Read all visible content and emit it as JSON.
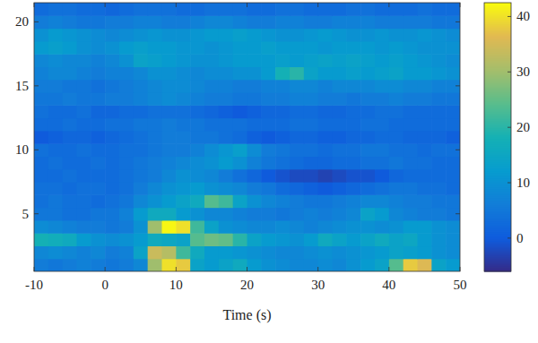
{
  "chart_data": {
    "type": "heatmap",
    "xlabel": "Time (s)",
    "x": [
      -9,
      -7,
      -5,
      -3,
      -1,
      1,
      3,
      5,
      7,
      9,
      11,
      13,
      15,
      17,
      19,
      21,
      23,
      25,
      27,
      29,
      31,
      33,
      35,
      37,
      39,
      41,
      43,
      45,
      47,
      49
    ],
    "y": [
      1,
      2,
      3,
      4,
      5,
      6,
      7,
      8,
      9,
      10,
      11,
      12,
      13,
      14,
      15,
      16,
      17,
      18,
      19,
      20,
      21
    ],
    "values": [
      [
        6,
        5,
        6,
        7,
        6,
        5,
        6,
        8,
        30,
        40,
        38,
        14,
        12,
        14,
        16,
        12,
        10,
        9,
        8,
        8,
        9,
        8,
        10,
        12,
        14,
        24,
        38,
        36,
        14,
        12
      ],
      [
        8,
        9,
        8,
        7,
        8,
        6,
        7,
        14,
        34,
        32,
        22,
        16,
        12,
        12,
        11,
        10,
        9,
        8,
        8,
        9,
        10,
        9,
        10,
        11,
        12,
        14,
        13,
        12,
        10,
        9
      ],
      [
        18,
        17,
        16,
        12,
        10,
        9,
        10,
        12,
        16,
        15,
        14,
        24,
        26,
        25,
        20,
        14,
        12,
        11,
        10,
        12,
        16,
        14,
        12,
        14,
        16,
        14,
        15,
        12,
        10,
        9
      ],
      [
        9,
        8,
        7,
        6,
        6,
        5,
        6,
        10,
        30,
        42,
        40,
        22,
        14,
        10,
        9,
        8,
        8,
        9,
        8,
        7,
        8,
        9,
        10,
        10,
        9,
        10,
        12,
        12,
        10,
        9
      ],
      [
        5,
        5,
        4,
        4,
        5,
        5,
        7,
        12,
        16,
        16,
        12,
        10,
        8,
        8,
        7,
        6,
        6,
        5,
        6,
        7,
        6,
        7,
        8,
        14,
        12,
        8,
        7,
        6,
        6,
        5
      ],
      [
        4,
        5,
        4,
        4,
        3,
        4,
        5,
        8,
        10,
        12,
        14,
        16,
        24,
        22,
        14,
        10,
        8,
        7,
        6,
        5,
        5,
        6,
        7,
        8,
        8,
        7,
        6,
        6,
        5,
        5
      ],
      [
        4,
        4,
        3,
        4,
        4,
        3,
        4,
        6,
        8,
        10,
        11,
        12,
        10,
        9,
        8,
        6,
        5,
        3,
        2,
        1,
        0,
        1,
        2,
        3,
        4,
        5,
        5,
        4,
        4,
        3
      ],
      [
        3,
        3,
        4,
        3,
        3,
        3,
        4,
        5,
        6,
        8,
        10,
        9,
        8,
        6,
        4,
        2,
        0,
        -1,
        -2,
        -2,
        -3,
        -2,
        -1,
        -1,
        0,
        2,
        3,
        3,
        3,
        3
      ],
      [
        3,
        4,
        3,
        3,
        4,
        3,
        4,
        5,
        6,
        7,
        8,
        9,
        10,
        12,
        10,
        7,
        5,
        4,
        3,
        2,
        2,
        3,
        3,
        4,
        4,
        5,
        4,
        4,
        3,
        3
      ],
      [
        4,
        3,
        3,
        4,
        3,
        3,
        4,
        4,
        5,
        6,
        6,
        7,
        9,
        11,
        13,
        9,
        6,
        5,
        4,
        4,
        3,
        4,
        4,
        5,
        5,
        4,
        4,
        3,
        4,
        4
      ],
      [
        0,
        1,
        2,
        2,
        1,
        2,
        3,
        4,
        5,
        6,
        6,
        5,
        5,
        4,
        3,
        1,
        0,
        1,
        2,
        2,
        1,
        1,
        2,
        2,
        3,
        3,
        2,
        2,
        2,
        1
      ],
      [
        3,
        3,
        4,
        3,
        3,
        4,
        4,
        5,
        5,
        6,
        5,
        5,
        4,
        4,
        4,
        3,
        3,
        3,
        4,
        4,
        3,
        3,
        3,
        4,
        4,
        3,
        3,
        3,
        3,
        3
      ],
      [
        4,
        3,
        3,
        4,
        2,
        2,
        3,
        3,
        4,
        4,
        4,
        3,
        2,
        1,
        0,
        1,
        2,
        2,
        3,
        3,
        2,
        2,
        3,
        3,
        4,
        4,
        3,
        3,
        3,
        3
      ],
      [
        5,
        5,
        6,
        5,
        5,
        6,
        6,
        7,
        8,
        9,
        8,
        7,
        6,
        6,
        5,
        5,
        6,
        6,
        7,
        7,
        6,
        6,
        5,
        6,
        6,
        7,
        6,
        6,
        5,
        5
      ],
      [
        6,
        6,
        5,
        5,
        4,
        5,
        6,
        7,
        8,
        9,
        9,
        8,
        7,
        7,
        6,
        6,
        7,
        7,
        8,
        8,
        7,
        8,
        8,
        8,
        9,
        9,
        8,
        8,
        7,
        7
      ],
      [
        7,
        8,
        8,
        7,
        6,
        7,
        7,
        8,
        10,
        10,
        9,
        8,
        9,
        9,
        10,
        10,
        12,
        18,
        20,
        14,
        12,
        12,
        13,
        12,
        13,
        14,
        12,
        12,
        11,
        10
      ],
      [
        8,
        9,
        8,
        8,
        7,
        8,
        10,
        14,
        13,
        12,
        11,
        10,
        10,
        11,
        12,
        12,
        12,
        13,
        12,
        13,
        14,
        13,
        14,
        13,
        12,
        13,
        12,
        11,
        10,
        9
      ],
      [
        12,
        13,
        12,
        10,
        9,
        10,
        12,
        13,
        12,
        12,
        11,
        11,
        10,
        11,
        12,
        12,
        13,
        12,
        12,
        12,
        11,
        12,
        12,
        12,
        11,
        12,
        11,
        10,
        10,
        10
      ],
      [
        10,
        12,
        11,
        10,
        9,
        8,
        9,
        10,
        11,
        10,
        10,
        11,
        12,
        12,
        13,
        12,
        11,
        10,
        10,
        11,
        12,
        11,
        10,
        10,
        11,
        10,
        10,
        11,
        10,
        9
      ],
      [
        6,
        7,
        6,
        5,
        5,
        6,
        6,
        7,
        7,
        6,
        6,
        7,
        8,
        8,
        7,
        6,
        6,
        7,
        7,
        6,
        6,
        7,
        7,
        7,
        6,
        6,
        6,
        6,
        5,
        5
      ],
      [
        3,
        4,
        4,
        3,
        3,
        2,
        3,
        4,
        4,
        4,
        3,
        3,
        4,
        4,
        4,
        3,
        3,
        4,
        4,
        3,
        3,
        3,
        4,
        4,
        3,
        3,
        3,
        4,
        3,
        3
      ]
    ],
    "xlim": [
      -10,
      50
    ],
    "ylim": [
      21.5,
      0.5
    ],
    "xticks": [
      -10,
      0,
      10,
      20,
      30,
      40,
      50
    ],
    "yticks": [
      5,
      10,
      15,
      20
    ],
    "colorbar": {
      "range": [
        -6,
        42.5
      ],
      "ticks": [
        0,
        10,
        20,
        30,
        40
      ]
    }
  }
}
